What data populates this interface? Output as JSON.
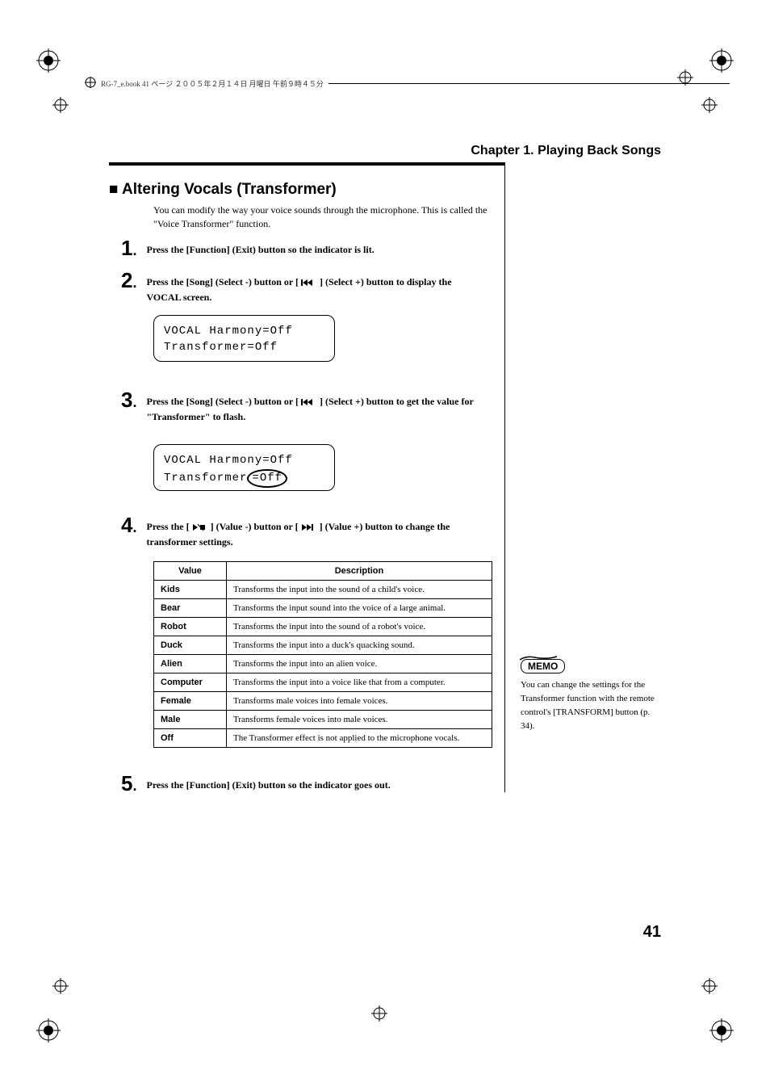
{
  "print_header": "RG-7_e.book 41 ページ ２００５年２月１４日 月曜日 午前９時４５分",
  "chapter_title": "Chapter 1. Playing Back Songs",
  "section_title": "■ Altering Vocals (Transformer)",
  "intro_text": "You can modify the way your voice sounds through the microphone. This is called the \"Voice Transformer\" function.",
  "steps": {
    "s1": {
      "num": "1",
      "text": "Press the [Function] (Exit) button so the indicator is lit."
    },
    "s2": {
      "num": "2",
      "text_pre": "Press the [Song] (Select -) button or [ ",
      "text_post": " ] (Select +) button to display the VOCAL screen."
    },
    "s3": {
      "num": "3",
      "text_pre": "Press the [Song] (Select -) button or [ ",
      "text_post": " ] (Select +) button to get the value for \"Transformer\" to flash."
    },
    "s4": {
      "num": "4",
      "text_pre": "Press the [ ",
      "text_mid": " ] (Value -) button or [ ",
      "text_post": " ] (Value +) button to change the transformer settings."
    },
    "s5": {
      "num": "5",
      "text": "Press the [Function] (Exit) button so the indicator goes out."
    }
  },
  "lcd1": {
    "line1": "VOCAL Harmony=Off",
    "line2": "Transformer=Off"
  },
  "lcd2": {
    "line1": "VOCAL Harmony=Off",
    "line2_pre": "Transformer",
    "line2_circled": "=Off"
  },
  "table": {
    "headers": {
      "value": "Value",
      "desc": "Description"
    },
    "rows": [
      {
        "value": "Kids",
        "desc": "Transforms the input into the sound of a child's voice."
      },
      {
        "value": "Bear",
        "desc": "Transforms the input sound into the voice of a large animal."
      },
      {
        "value": "Robot",
        "desc": "Transforms the input into the sound of a robot's voice."
      },
      {
        "value": "Duck",
        "desc": "Transforms the input into a duck's quacking sound."
      },
      {
        "value": "Alien",
        "desc": "Transforms the input into an alien voice."
      },
      {
        "value": "Computer",
        "desc": "Transforms the input into a voice like that from a computer."
      },
      {
        "value": "Female",
        "desc": "Transforms male voices into female voices."
      },
      {
        "value": "Male",
        "desc": "Transforms female voices into male voices."
      },
      {
        "value": "Off",
        "desc": "The Transformer effect is not applied to the microphone vocals."
      }
    ]
  },
  "memo": {
    "label": "MEMO",
    "text": "You can change the settings for the Transformer function with the remote control's [TRANSFORM] button (p. 34)."
  },
  "page_number": "41"
}
